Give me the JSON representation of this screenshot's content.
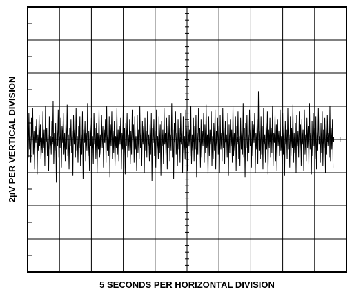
{
  "chart_data": {
    "type": "line",
    "title": "",
    "xlabel": "5 SECONDS PER HORIZONTAL DIVISION",
    "ylabel": "2µV PER VERTICAL DIVISION",
    "grid": true,
    "divisions": {
      "horizontal": 10,
      "vertical": 8
    },
    "x_units_per_division": 5,
    "y_units_per_division": 2,
    "xlim": [
      0,
      50
    ],
    "ylim": [
      -8,
      8
    ],
    "series": [
      {
        "x_start": 0,
        "x_step": 0.1,
        "values": [
          0.4,
          -1.1,
          1.6,
          -0.6,
          0.2,
          -1.4,
          1.3,
          -0.3,
          1.9,
          -0.9,
          0.5,
          -1.8,
          0.8,
          -0.2,
          1.2,
          -2.1,
          0.3,
          -0.7,
          1.5,
          -0.4,
          0.9,
          -1.2,
          0.1,
          -0.8,
          1.7,
          -0.5,
          0.6,
          -1.6,
          2.0,
          -0.1,
          0.7,
          -1.0,
          0.3,
          -1.9,
          1.4,
          -0.6,
          0.2,
          -0.9,
          1.1,
          -0.3,
          2.3,
          -1.5,
          0.4,
          -0.7,
          1.0,
          -2.6,
          0.6,
          -0.4,
          1.8,
          -1.1,
          0.2,
          -0.5,
          1.3,
          -1.7,
          0.8,
          -0.2,
          1.6,
          -0.9,
          0.4,
          -1.3,
          0.9,
          -0.6,
          2.1,
          -1.0,
          0.3,
          -1.8,
          0.7,
          -0.4,
          1.2,
          -0.8,
          0.5,
          -2.2,
          1.5,
          -0.3,
          0.6,
          -1.1,
          1.9,
          -0.7,
          0.2,
          -1.4,
          0.8,
          -0.5,
          1.4,
          -1.6,
          0.3,
          -0.9,
          1.7,
          -2.4,
          0.6,
          -0.2,
          1.1,
          -1.3,
          0.4,
          -0.7,
          2.2,
          -1.0,
          0.5,
          -1.9,
          0.9,
          -0.4,
          1.3,
          -0.8,
          0.2,
          -1.5,
          1.6,
          -0.3,
          0.7,
          -1.2,
          1.0,
          -2.0,
          0.4,
          -0.6,
          1.8,
          -1.1,
          0.3,
          -0.9,
          1.5,
          -0.5,
          0.8,
          -1.7,
          0.6,
          -0.2,
          1.2,
          -1.4,
          2.0,
          -0.7,
          0.3,
          -1.0,
          1.4,
          -2.3,
          0.9,
          -0.4,
          1.7,
          -1.2,
          0.5,
          -0.8,
          1.1,
          -1.6,
          0.2,
          -0.5,
          1.9,
          -0.9,
          0.6,
          -1.3,
          0.8,
          -0.3,
          1.3,
          -1.8,
          0.4,
          -0.6,
          2.1,
          -1.0,
          0.7,
          -2.1,
          1.0,
          -0.4,
          1.6,
          -1.1,
          0.3,
          -0.7,
          1.2,
          -1.5,
          0.5,
          -0.9,
          1.8,
          -0.2,
          0.9,
          -1.4,
          1.4,
          -0.6,
          0.2,
          -1.9,
          1.5,
          -0.8,
          0.6,
          -1.2,
          2.0,
          -0.5,
          0.4,
          -1.6,
          1.1,
          -0.3,
          0.8,
          -2.0,
          1.3,
          -0.7,
          0.5,
          -1.1,
          1.7,
          -0.4,
          0.3,
          -1.3,
          0.9,
          -0.9,
          1.6,
          -2.5,
          0.7,
          -0.2,
          1.2,
          -1.0,
          0.5,
          -1.7,
          1.8,
          -0.6,
          0.2,
          -1.2,
          1.4,
          -0.8,
          0.9,
          -2.2,
          1.1,
          -0.4,
          0.6,
          -1.5,
          1.9,
          -0.3,
          0.4,
          -1.0,
          1.3,
          -1.8,
          0.8,
          -0.5,
          1.5,
          -1.3,
          0.3,
          -0.7,
          2.2,
          -1.1,
          0.6,
          -2.4,
          1.0,
          -0.2,
          1.7,
          -0.9,
          0.4,
          -1.6,
          1.2,
          -0.6,
          0.7,
          -1.4,
          1.6,
          -0.3,
          0.5,
          -2.0,
          1.4,
          -0.8,
          0.2,
          -1.2,
          1.8,
          -0.5,
          0.9,
          -1.9,
          1.1,
          -0.4,
          0.6,
          -1.0,
          2.0,
          -1.5,
          0.3,
          -0.7,
          1.3,
          -1.3,
          0.8,
          -0.6,
          1.5,
          -2.3,
          0.4,
          -0.9,
          1.9,
          -0.2,
          0.7,
          -1.7,
          1.2,
          -1.1,
          0.5,
          -0.4,
          1.6,
          -1.4,
          0.9,
          -0.8,
          2.1,
          -0.5,
          0.3,
          -2.1,
          1.4,
          -1.0,
          0.6,
          -0.3,
          1.7,
          -1.6,
          0.2,
          -1.2,
          1.0,
          -0.7,
          1.8,
          -1.8,
          0.5,
          -0.4,
          1.3,
          -0.9,
          0.8,
          -2.0,
          1.5,
          -0.6,
          0.4,
          -1.3,
          1.9,
          -0.5,
          0.7,
          -1.5,
          1.1,
          -0.2,
          0.3,
          -1.1,
          1.6,
          -2.2,
          0.9,
          -0.8,
          1.2,
          -0.4,
          0.6,
          -1.4,
          2.0,
          -1.0,
          0.4,
          -0.7,
          1.4,
          -1.9,
          0.8,
          -0.3,
          1.7,
          -1.2,
          0.2,
          -1.6,
          1.3,
          -0.6,
          0.5,
          -0.9,
          2.2,
          -1.1,
          0.7,
          -2.3,
          1.0,
          -0.5,
          1.5,
          -1.3,
          0.3,
          -0.8,
          1.8,
          -0.4,
          0.6,
          -1.7,
          1.1,
          -1.0,
          0.9,
          -0.2,
          1.6,
          -2.0,
          0.4,
          -0.6,
          1.2,
          -1.5,
          2.9,
          -0.7,
          0.5,
          -1.2,
          1.4,
          -0.9,
          0.8,
          -1.8,
          1.9,
          -0.3,
          0.3,
          -1.4,
          1.0,
          -0.6,
          1.7,
          -2.1,
          0.6,
          -0.5,
          1.3,
          -1.1,
          0.7,
          -0.8,
          2.0,
          -1.6,
          0.4,
          -0.2,
          1.5,
          -1.3,
          0.9,
          -1.9,
          1.2,
          -0.4,
          0.5,
          -1.0,
          1.8,
          -0.7,
          0.2,
          -1.5,
          1.6,
          -0.9,
          0.8,
          -2.2,
          1.1,
          -0.3,
          0.6,
          -1.2,
          1.9,
          -0.6,
          0.3,
          -1.7,
          1.4,
          -1.0,
          0.7,
          -0.5,
          2.1,
          -1.4,
          0.4,
          -0.8,
          1.0,
          -2.0,
          1.5,
          -0.4,
          0.5,
          -1.1,
          1.7,
          -0.7,
          0.9,
          -1.6,
          1.2,
          -0.3,
          0.6,
          -1.9,
          1.8,
          -0.9,
          0.3,
          -1.3,
          1.3,
          -0.5,
          0.8,
          -1.5,
          2.2,
          -0.6,
          0.4,
          -2.1,
          1.1,
          -1.0,
          1.6,
          -0.4,
          0.7,
          -1.2,
          1.4,
          -1.8,
          0.5,
          -0.7,
          1.9,
          -0.3,
          0.2,
          -1.4,
          1.0,
          -0.8,
          1.7,
          -1.6,
          0.6,
          -0.5,
          1.3,
          -2.0,
          0.9,
          -0.9,
          1.5,
          -0.4,
          0.4,
          -1.1,
          2.0,
          -1.3,
          0.7,
          -0.6,
          1.2,
          -1.7
        ]
      }
    ]
  }
}
